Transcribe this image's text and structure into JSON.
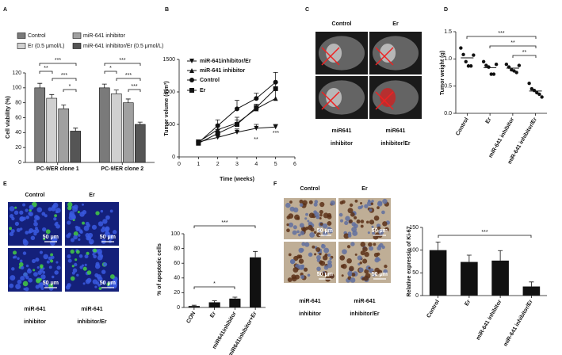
{
  "chart_data": [
    {
      "type": "groupedbar",
      "panel": "A",
      "y_label": "Cell viability (%)",
      "categories": [
        "PC-9/ER clone 1",
        "PC-9/ER clone 2"
      ],
      "series": [
        {
          "name": "Control",
          "color": "#7a7a7a",
          "values": [
            100,
            100
          ],
          "errors": [
            6,
            5
          ]
        },
        {
          "name": "Er (0.5 μmol/L)",
          "color": "#d0d0d0",
          "values": [
            86,
            92
          ],
          "errors": [
            5,
            5
          ]
        },
        {
          "name": "miR-641 inhibitor",
          "color": "#a0a0a0",
          "values": [
            72,
            80
          ],
          "errors": [
            5,
            5
          ]
        },
        {
          "name": "miR-641 inhibitor/Er (0.5 μmol/L)",
          "color": "#555555",
          "values": [
            42,
            51
          ],
          "errors": [
            4,
            3
          ]
        }
      ],
      "ylim": [
        0,
        120
      ],
      "yticks": [
        0,
        20,
        40,
        60,
        80,
        100,
        120
      ],
      "annotations": [
        "***",
        "**",
        "***",
        "*",
        "***",
        "*",
        "***",
        "***"
      ]
    },
    {
      "type": "line",
      "panel": "B",
      "y_label": "Tumor volume (mm³)",
      "x_label": "Time (weeks)",
      "x": [
        1,
        2,
        3,
        4,
        5
      ],
      "series": [
        {
          "name": "miR-641inhibitor/Er",
          "marker": "triangle-down",
          "color": "#111111",
          "values": [
            230,
            300,
            380,
            440,
            460
          ],
          "errors": [
            30,
            40,
            50,
            60,
            40
          ]
        },
        {
          "name": "miR-641 inhibitor",
          "marker": "triangle-up",
          "color": "#111111",
          "values": [
            230,
            420,
            520,
            740,
            900
          ],
          "errors": [
            30,
            80,
            90,
            50,
            150
          ]
        },
        {
          "name": "Control",
          "marker": "circle",
          "color": "#111111",
          "values": [
            220,
            480,
            740,
            900,
            1150
          ],
          "errors": [
            30,
            90,
            130,
            80,
            150
          ]
        },
        {
          "name": "Er",
          "marker": "square",
          "color": "#111111",
          "values": [
            210,
            360,
            500,
            760,
            1050
          ],
          "errors": [
            30,
            60,
            70,
            50,
            100
          ]
        }
      ],
      "xlim": [
        0,
        6
      ],
      "xticks": [
        0,
        1,
        2,
        3,
        4,
        5,
        6
      ],
      "ylim": [
        0,
        1500
      ],
      "yticks": [
        0,
        500,
        1000,
        1500
      ],
      "annotations": [
        "**",
        "***"
      ]
    },
    {
      "type": "strip",
      "panel": "D",
      "y_label": "Tumor weight (g)",
      "categories": [
        "Control",
        "Er",
        "miR-641 inhibitor",
        "miR-641 inhibitor/Er"
      ],
      "values": [
        [
          1.2,
          1.08,
          0.95,
          0.87,
          0.87,
          1.07
        ],
        [
          0.95,
          0.88,
          0.85,
          0.72,
          0.72,
          0.9
        ],
        [
          0.9,
          0.85,
          0.8,
          0.78,
          0.75,
          0.88
        ],
        [
          0.55,
          0.45,
          0.42,
          0.38,
          0.35,
          0.3
        ]
      ],
      "means": [
        1.02,
        0.84,
        0.83,
        0.41
      ],
      "color": "#111111",
      "ylim": [
        0,
        1.5
      ],
      "yticks": [
        {
          "value": 0,
          "label": "0.0"
        },
        0.5,
        {
          "value": 1,
          "label": "1.0"
        },
        1.5
      ],
      "annotations": [
        "***",
        "**",
        "**"
      ]
    },
    {
      "type": "bar",
      "panel": "E",
      "y_label": "% of apoptotic cells",
      "categories": [
        "CON",
        "Er",
        "miR641inhibitor",
        "miR641inhibitor+Er"
      ],
      "values": [
        2,
        7,
        12,
        68
      ],
      "errors": [
        1,
        2,
        2,
        8
      ],
      "color": "#111111",
      "ylim": [
        0,
        100
      ],
      "yticks": [
        0,
        20,
        40,
        60,
        80,
        100
      ],
      "annotations": [
        "***",
        "*"
      ]
    },
    {
      "type": "bar",
      "panel": "F",
      "y_label": "Relative expressio of Ki-67",
      "categories": [
        "Control",
        "Er",
        "miR-641 inhibitor",
        "miR-641 inhibitor/Er"
      ],
      "values": [
        100,
        74,
        77,
        20
      ],
      "errors": [
        18,
        15,
        22,
        10
      ],
      "color": "#111111",
      "ylim": [
        0,
        150
      ],
      "yticks": [
        0,
        50,
        100,
        150
      ],
      "annotations": [
        "***"
      ]
    }
  ],
  "image_panels": [
    {
      "panel": "C",
      "labels": [
        [
          "Control"
        ],
        [
          "Er"
        ],
        [
          "miR641",
          "inhibitor"
        ],
        [
          "miR641",
          "inhibitor/Er"
        ]
      ]
    },
    {
      "panel": "E",
      "labels": [
        [
          "Control"
        ],
        [
          "Er"
        ],
        [
          "miR-641",
          "inhibitor"
        ],
        [
          "miR-641",
          "inhibitor/Er"
        ]
      ],
      "scale_labels": [
        "50 μm",
        "50 μm",
        "50 μm",
        "50 μm"
      ]
    },
    {
      "panel": "F",
      "labels": [
        [
          "Control"
        ],
        [
          "Er"
        ],
        [
          "miR-641",
          "inhibitor"
        ],
        [
          "miR-641",
          "inhibitor/Er"
        ]
      ],
      "scale_labels": [
        "50 μm",
        "50 μm",
        "50 μm",
        "50 μm"
      ]
    }
  ]
}
